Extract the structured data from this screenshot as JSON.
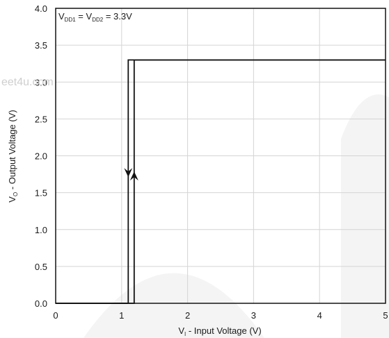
{
  "chart_data": {
    "type": "line",
    "title": "",
    "xlabel": {
      "main": "V",
      "sub": "I",
      "rest": " - Input Voltage (V)"
    },
    "ylabel": {
      "main": "V",
      "sub": "O",
      "rest": " - Output Voltage (V)"
    },
    "xlim": [
      0,
      5
    ],
    "ylim": [
      0,
      4.0
    ],
    "xticks": [
      "0",
      "1",
      "2",
      "3",
      "4",
      "5"
    ],
    "yticks": [
      "0.0",
      "0.5",
      "1.0",
      "1.5",
      "2.0",
      "2.5",
      "3.0",
      "3.5",
      "4.0"
    ],
    "grid": true,
    "annotation": {
      "vdd1_main": "V",
      "vdd1_sub": "DD1",
      "eq1": " = ",
      "vdd2_main": "V",
      "vdd2_sub": "DD2",
      "value": " = 3.3V"
    },
    "series": [
      {
        "direction": "rising",
        "x": [
          0,
          1.19,
          1.19,
          5
        ],
        "y": [
          0,
          0,
          3.3,
          3.3
        ],
        "arrow_y": 1.75
      },
      {
        "direction": "falling",
        "x": [
          0,
          1.1,
          1.1,
          5
        ],
        "y": [
          0,
          0,
          3.3,
          3.3
        ],
        "arrow_y": 1.75
      }
    ],
    "line_color": "#111111",
    "grid_color": "#d4d4d4"
  },
  "watermark": "eet4u.com"
}
